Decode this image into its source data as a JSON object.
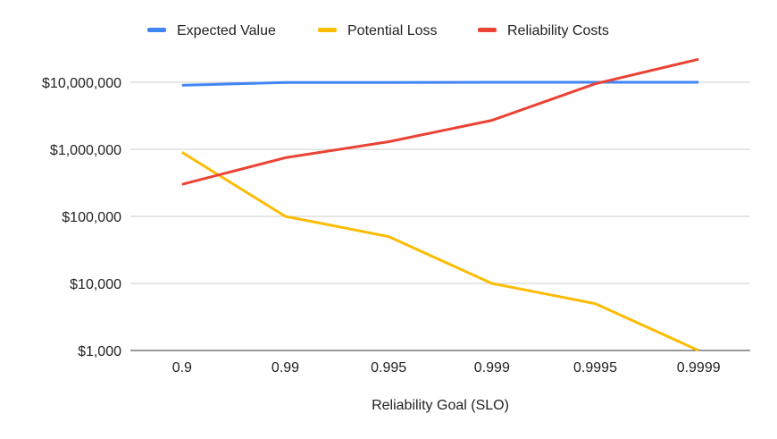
{
  "chart_data": {
    "type": "line",
    "title": "",
    "xlabel": "Reliability Goal (SLO)",
    "ylabel": "",
    "y_scale": "log",
    "ylim": [
      1000,
      20000000
    ],
    "yticks": [
      1000,
      10000,
      100000,
      1000000,
      10000000
    ],
    "ytick_labels": [
      "$1,000",
      "$10,000",
      "$100,000",
      "$1,000,000",
      "$10,000,000"
    ],
    "categories": [
      "0.9",
      "0.99",
      "0.995",
      "0.999",
      "0.9995",
      "0.9999"
    ],
    "grid": true,
    "legend_position": "top",
    "series": [
      {
        "name": "Expected Value",
        "color": "#4285F4",
        "values": [
          9000000,
          9900000,
          9950000,
          9990000,
          9995000,
          9999000
        ]
      },
      {
        "name": "Potential Loss",
        "color": "#FBBC04",
        "values": [
          900000,
          100000,
          50000,
          10000,
          5000,
          1000
        ]
      },
      {
        "name": "Reliability Costs",
        "color": "#EA4335",
        "values": [
          300000,
          750000,
          1300000,
          2700000,
          9500000,
          22000000
        ]
      }
    ]
  }
}
